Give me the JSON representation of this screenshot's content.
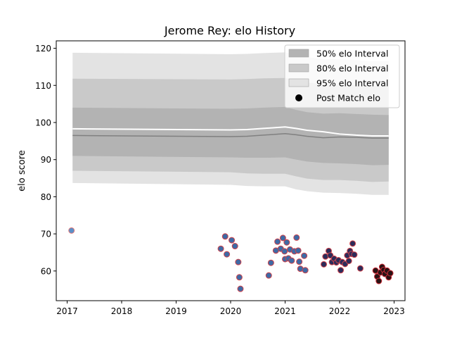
{
  "chart_data": {
    "type": "scatter",
    "title": "Jerome Rey: elo History",
    "xlabel": "",
    "ylabel": "elo score",
    "xlim": [
      2016.8,
      2023.2
    ],
    "ylim": [
      52,
      122
    ],
    "grid": false,
    "legend_position": "top-right",
    "x_ticks": [
      2017,
      2018,
      2019,
      2020,
      2021,
      2022,
      2023
    ],
    "x_tick_labels": [
      "2017",
      "2018",
      "2019",
      "2020",
      "2021",
      "2022",
      "2023"
    ],
    "y_ticks": [
      60,
      70,
      80,
      90,
      100,
      110,
      120
    ],
    "y_tick_labels": [
      "60",
      "70",
      "80",
      "90",
      "100",
      "110",
      "120"
    ],
    "legend": [
      {
        "label": "50% elo Interval",
        "kind": "band",
        "color": "#b3b3b3"
      },
      {
        "label": "80% elo Interval",
        "kind": "band",
        "color": "#c9c9c9"
      },
      {
        "label": "95% elo Interval",
        "kind": "band",
        "color": "#e3e3e3"
      },
      {
        "label": "Post Match elo",
        "kind": "marker",
        "color": "#000000"
      }
    ],
    "bands": {
      "x": [
        2017.1,
        2020.0,
        2020.3,
        2020.6,
        2021.0,
        2021.2,
        2021.4,
        2021.7,
        2022.0,
        2022.3,
        2022.6,
        2022.9
      ],
      "mean": [
        96.5,
        96.2,
        96.3,
        96.6,
        97.0,
        96.7,
        96.3,
        95.9,
        96.1,
        96.0,
        95.8,
        95.8
      ],
      "upper_line": [
        98.3,
        98.0,
        98.1,
        98.4,
        98.8,
        98.4,
        97.9,
        97.5,
        96.9,
        96.6,
        96.4,
        96.4
      ],
      "band50": {
        "low": [
          91.0,
          90.6,
          90.5,
          90.5,
          90.6,
          90.0,
          89.5,
          89.1,
          89.0,
          88.8,
          88.5,
          88.6
        ],
        "high": [
          104.0,
          103.7,
          103.8,
          104.0,
          104.2,
          103.4,
          102.8,
          102.4,
          102.5,
          102.3,
          102.1,
          102.0
        ]
      },
      "band80": {
        "low": [
          87.0,
          86.6,
          86.3,
          86.2,
          86.2,
          85.5,
          84.9,
          84.5,
          84.5,
          84.3,
          84.0,
          84.1
        ],
        "high": [
          111.8,
          111.6,
          111.7,
          111.9,
          112.0,
          111.4,
          110.8,
          110.3,
          110.2,
          110.0,
          109.8,
          109.8
        ]
      },
      "band95": {
        "low": [
          83.7,
          83.2,
          82.9,
          82.8,
          82.8,
          82.0,
          81.5,
          81.1,
          81.0,
          80.8,
          80.5,
          80.5
        ],
        "high": [
          118.8,
          118.4,
          118.5,
          118.7,
          118.9,
          118.2,
          117.6,
          117.1,
          117.0,
          116.8,
          116.5,
          116.5
        ]
      },
      "band_colors": {
        "band50": "#b3b3b3",
        "band80": "#c9c9c9",
        "band95": "#e3e3e3",
        "mean": "#808080",
        "upper_line": "#ffffff"
      }
    },
    "series": [
      {
        "name": "Post Match elo",
        "points": [
          {
            "x": 2017.08,
            "y": 70.9,
            "fill": "#5b8fc7",
            "edge": "#e0797a"
          },
          {
            "x": 2019.82,
            "y": 66.0,
            "fill": "#3e6aa5",
            "edge": "#d0424a"
          },
          {
            "x": 2019.9,
            "y": 69.3,
            "fill": "#3e6aa5",
            "edge": "#d0424a"
          },
          {
            "x": 2019.93,
            "y": 64.5,
            "fill": "#3e6aa5",
            "edge": "#d0424a"
          },
          {
            "x": 2020.02,
            "y": 68.3,
            "fill": "#3e6aa5",
            "edge": "#d0424a"
          },
          {
            "x": 2020.08,
            "y": 66.7,
            "fill": "#3e6aa5",
            "edge": "#d0424a"
          },
          {
            "x": 2020.14,
            "y": 62.4,
            "fill": "#3e6aa5",
            "edge": "#d0424a"
          },
          {
            "x": 2020.16,
            "y": 58.3,
            "fill": "#3e6aa5",
            "edge": "#d0424a"
          },
          {
            "x": 2020.18,
            "y": 55.2,
            "fill": "#3e6aa5",
            "edge": "#d0424a"
          },
          {
            "x": 2020.7,
            "y": 58.8,
            "fill": "#3e6aa5",
            "edge": "#d0424a"
          },
          {
            "x": 2020.74,
            "y": 62.2,
            "fill": "#3e6aa5",
            "edge": "#d0424a"
          },
          {
            "x": 2020.83,
            "y": 65.5,
            "fill": "#3e6aa5",
            "edge": "#d0424a"
          },
          {
            "x": 2020.86,
            "y": 67.9,
            "fill": "#3e6aa5",
            "edge": "#d0424a"
          },
          {
            "x": 2020.92,
            "y": 66.0,
            "fill": "#3e6aa5",
            "edge": "#d0424a"
          },
          {
            "x": 2020.96,
            "y": 68.9,
            "fill": "#3e6aa5",
            "edge": "#d0424a"
          },
          {
            "x": 2020.99,
            "y": 65.3,
            "fill": "#3e6aa5",
            "edge": "#d0424a"
          },
          {
            "x": 2021.0,
            "y": 63.2,
            "fill": "#3e6aa5",
            "edge": "#d0424a"
          },
          {
            "x": 2021.03,
            "y": 67.7,
            "fill": "#3e6aa5",
            "edge": "#d0424a"
          },
          {
            "x": 2021.06,
            "y": 63.4,
            "fill": "#3e6aa5",
            "edge": "#d0424a"
          },
          {
            "x": 2021.09,
            "y": 65.8,
            "fill": "#3e6aa5",
            "edge": "#d0424a"
          },
          {
            "x": 2021.12,
            "y": 62.8,
            "fill": "#3e6aa5",
            "edge": "#d0424a"
          },
          {
            "x": 2021.17,
            "y": 65.3,
            "fill": "#3e6aa5",
            "edge": "#d0424a"
          },
          {
            "x": 2021.21,
            "y": 69.0,
            "fill": "#3e6aa5",
            "edge": "#d0424a"
          },
          {
            "x": 2021.24,
            "y": 65.5,
            "fill": "#3e6aa5",
            "edge": "#d0424a"
          },
          {
            "x": 2021.26,
            "y": 62.5,
            "fill": "#3e6aa5",
            "edge": "#d0424a"
          },
          {
            "x": 2021.28,
            "y": 60.6,
            "fill": "#3e6aa5",
            "edge": "#d0424a"
          },
          {
            "x": 2021.35,
            "y": 64.1,
            "fill": "#3e6aa5",
            "edge": "#d0424a"
          },
          {
            "x": 2021.37,
            "y": 60.2,
            "fill": "#3e6aa5",
            "edge": "#d0424a"
          },
          {
            "x": 2021.71,
            "y": 61.8,
            "fill": "#2c2c5a",
            "edge": "#d0424a"
          },
          {
            "x": 2021.74,
            "y": 63.9,
            "fill": "#2c2c5a",
            "edge": "#d0424a"
          },
          {
            "x": 2021.8,
            "y": 65.4,
            "fill": "#2c2c5a",
            "edge": "#d0424a"
          },
          {
            "x": 2021.83,
            "y": 64.2,
            "fill": "#2c2c5a",
            "edge": "#d0424a"
          },
          {
            "x": 2021.86,
            "y": 62.4,
            "fill": "#2c2c5a",
            "edge": "#d0424a"
          },
          {
            "x": 2021.9,
            "y": 63.3,
            "fill": "#2c2c5a",
            "edge": "#d0424a"
          },
          {
            "x": 2021.94,
            "y": 62.3,
            "fill": "#2c2c5a",
            "edge": "#d0424a"
          },
          {
            "x": 2021.98,
            "y": 62.9,
            "fill": "#2c2c5a",
            "edge": "#d0424a"
          },
          {
            "x": 2022.02,
            "y": 60.2,
            "fill": "#2c2c5a",
            "edge": "#d0424a"
          },
          {
            "x": 2022.05,
            "y": 62.4,
            "fill": "#2c2c5a",
            "edge": "#d0424a"
          },
          {
            "x": 2022.1,
            "y": 61.9,
            "fill": "#2c2c5a",
            "edge": "#d0424a"
          },
          {
            "x": 2022.14,
            "y": 64.2,
            "fill": "#2c2c5a",
            "edge": "#d0424a"
          },
          {
            "x": 2022.17,
            "y": 62.7,
            "fill": "#2c2c5a",
            "edge": "#d0424a"
          },
          {
            "x": 2022.19,
            "y": 65.4,
            "fill": "#2c2c5a",
            "edge": "#d0424a"
          },
          {
            "x": 2022.22,
            "y": 64.6,
            "fill": "#2c2c5a",
            "edge": "#d0424a"
          },
          {
            "x": 2022.24,
            "y": 67.4,
            "fill": "#2c2c5a",
            "edge": "#d0424a"
          },
          {
            "x": 2022.27,
            "y": 64.4,
            "fill": "#2c2c5a",
            "edge": "#d0424a"
          },
          {
            "x": 2022.38,
            "y": 60.7,
            "fill": "#2c2c5a",
            "edge": "#d0424a"
          },
          {
            "x": 2022.66,
            "y": 60.1,
            "fill": "#2a1214",
            "edge": "#cc2b36"
          },
          {
            "x": 2022.69,
            "y": 58.5,
            "fill": "#2a1214",
            "edge": "#cc2b36"
          },
          {
            "x": 2022.72,
            "y": 57.3,
            "fill": "#2a1214",
            "edge": "#cc2b36"
          },
          {
            "x": 2022.75,
            "y": 59.6,
            "fill": "#2a1214",
            "edge": "#cc2b36"
          },
          {
            "x": 2022.78,
            "y": 61.1,
            "fill": "#2a1214",
            "edge": "#cc2b36"
          },
          {
            "x": 2022.81,
            "y": 60.3,
            "fill": "#2a1214",
            "edge": "#cc2b36"
          },
          {
            "x": 2022.83,
            "y": 59.2,
            "fill": "#2a1214",
            "edge": "#cc2b36"
          },
          {
            "x": 2022.87,
            "y": 60.1,
            "fill": "#2a1214",
            "edge": "#cc2b36"
          },
          {
            "x": 2022.9,
            "y": 58.3,
            "fill": "#2a1214",
            "edge": "#cc2b36"
          },
          {
            "x": 2022.93,
            "y": 59.4,
            "fill": "#2a1214",
            "edge": "#cc2b36"
          }
        ]
      }
    ]
  }
}
